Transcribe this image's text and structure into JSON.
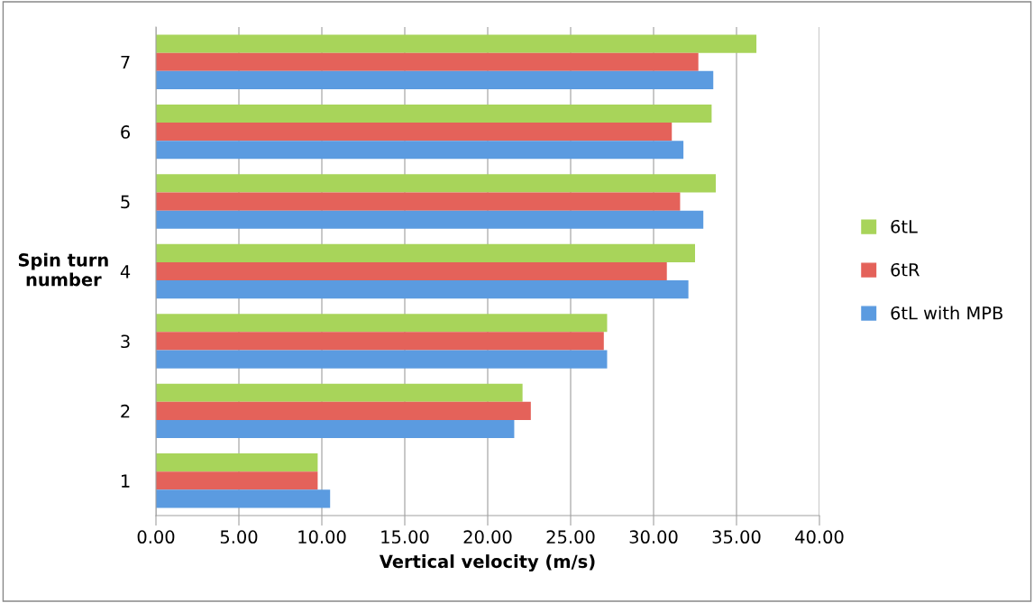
{
  "chart_data": {
    "type": "bar",
    "orientation": "horizontal",
    "xlabel": "Vertical velocity (m/s)",
    "ylabel": "Spin turn\nnumber",
    "categories": [
      "7",
      "6",
      "5",
      "4",
      "3",
      "2",
      "1"
    ],
    "series": [
      {
        "name": "6tL",
        "color": "#a8d45a",
        "values": [
          36.2,
          33.5,
          33.75,
          32.5,
          27.2,
          22.1,
          9.75
        ]
      },
      {
        "name": "6tR",
        "color": "#e4625a",
        "values": [
          32.7,
          31.1,
          31.6,
          30.8,
          27.0,
          22.6,
          9.75
        ]
      },
      {
        "name": "6tL with MPB",
        "color": "#5b9be0",
        "values": [
          33.6,
          31.8,
          33.0,
          32.1,
          27.2,
          21.6,
          10.5
        ]
      }
    ],
    "xlim": [
      0,
      40
    ],
    "xticks": [
      {
        "value": 0,
        "label": "0.00"
      },
      {
        "value": 5,
        "label": "5.00"
      },
      {
        "value": 10,
        "label": "10.00"
      },
      {
        "value": 15,
        "label": "15.00"
      },
      {
        "value": 20,
        "label": "20.00"
      },
      {
        "value": 25,
        "label": "25.00"
      },
      {
        "value": 30,
        "label": "30.00"
      },
      {
        "value": 35,
        "label": "35.00"
      },
      {
        "value": 40,
        "label": "40.00"
      }
    ],
    "grid": "x",
    "legend": "right"
  }
}
